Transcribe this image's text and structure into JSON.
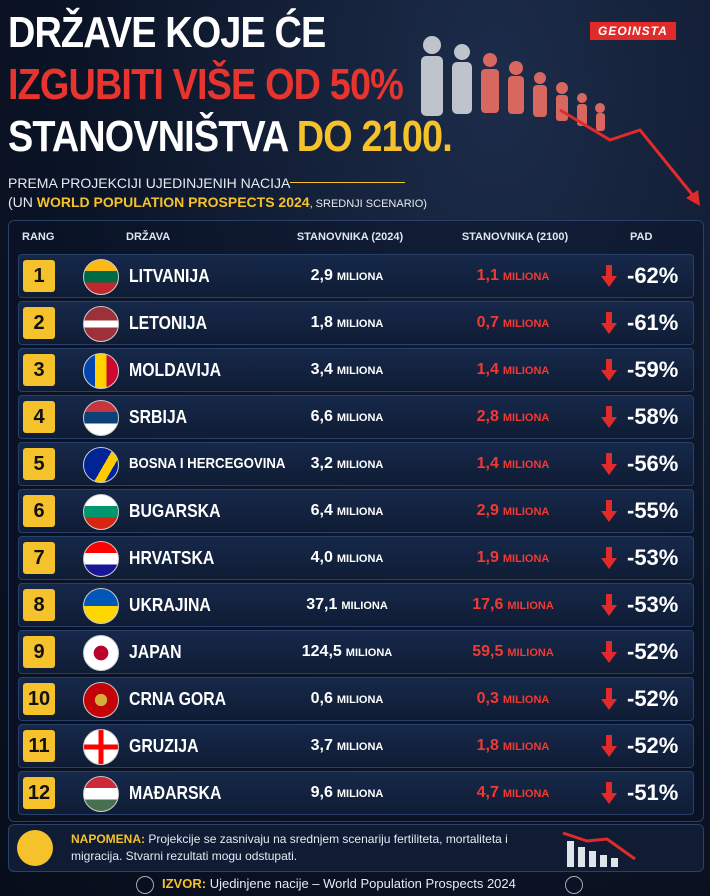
{
  "header": {
    "brand": "GEOINSTA",
    "title_line1": "DRŽAVE KOJE ĆE",
    "title_line2": "IZGUBITI VIŠE OD 50%",
    "title_line3a": "STANOVNIŠTVA",
    "title_line3b": "DO 2100.",
    "subtitle_line1": "PREMA PROJEKCIJI UJEDINJENIH NACIJA",
    "subtitle_line2a": "(UN",
    "subtitle_line2b": "WORLD POPULATION PROSPECTS 2024",
    "subtitle_line2c": ", SREDNJI SCENARIO)"
  },
  "table": {
    "columns": [
      "RANG",
      "DRŽAVA",
      "STANOVNIKA (2024)",
      "STANOVNIKA (2100)",
      "PAD"
    ],
    "unit": "MILIONA",
    "rows": [
      [
        "1",
        "LITVANIJA",
        "2,9",
        "1,1",
        "-62%"
      ],
      [
        "2",
        "LETONIJA",
        "1,8",
        "0,7",
        "-61%"
      ],
      [
        "3",
        "MOLDAVIJA",
        "3,4",
        "1,4",
        "-59%"
      ],
      [
        "4",
        "SRBIJA",
        "6,6",
        "2,8",
        "-58%"
      ],
      [
        "5",
        "BOSNA I HERCEGOVINA",
        "3,2",
        "1,4",
        "-56%"
      ],
      [
        "6",
        "BUGARSKA",
        "6,4",
        "2,9",
        "-55%"
      ],
      [
        "7",
        "HRVATSKA",
        "4,0",
        "1,9",
        "-53%"
      ],
      [
        "8",
        "UKRAJINA",
        "37,1",
        "17,6",
        "-53%"
      ],
      [
        "9",
        "JAPAN",
        "124,5",
        "59,5",
        "-52%"
      ],
      [
        "10",
        "CRNA GORA",
        "0,6",
        "0,3",
        "-52%"
      ],
      [
        "11",
        "GRUZIJA",
        "3,7",
        "1,8",
        "-52%"
      ],
      [
        "12",
        "MAĐARSKA",
        "9,6",
        "4,7",
        "-51%"
      ]
    ]
  },
  "note": {
    "label": "NAPOMENA:",
    "text": "Projekcije se zasnivaju na srednjem scenariju fertiliteta, mortaliteta i migracija. Stvarni rezultati mogu odstupati."
  },
  "source": {
    "label": "IZVOR:",
    "text": "Ujedinjene nacije – World Population Prospects 2024"
  }
}
